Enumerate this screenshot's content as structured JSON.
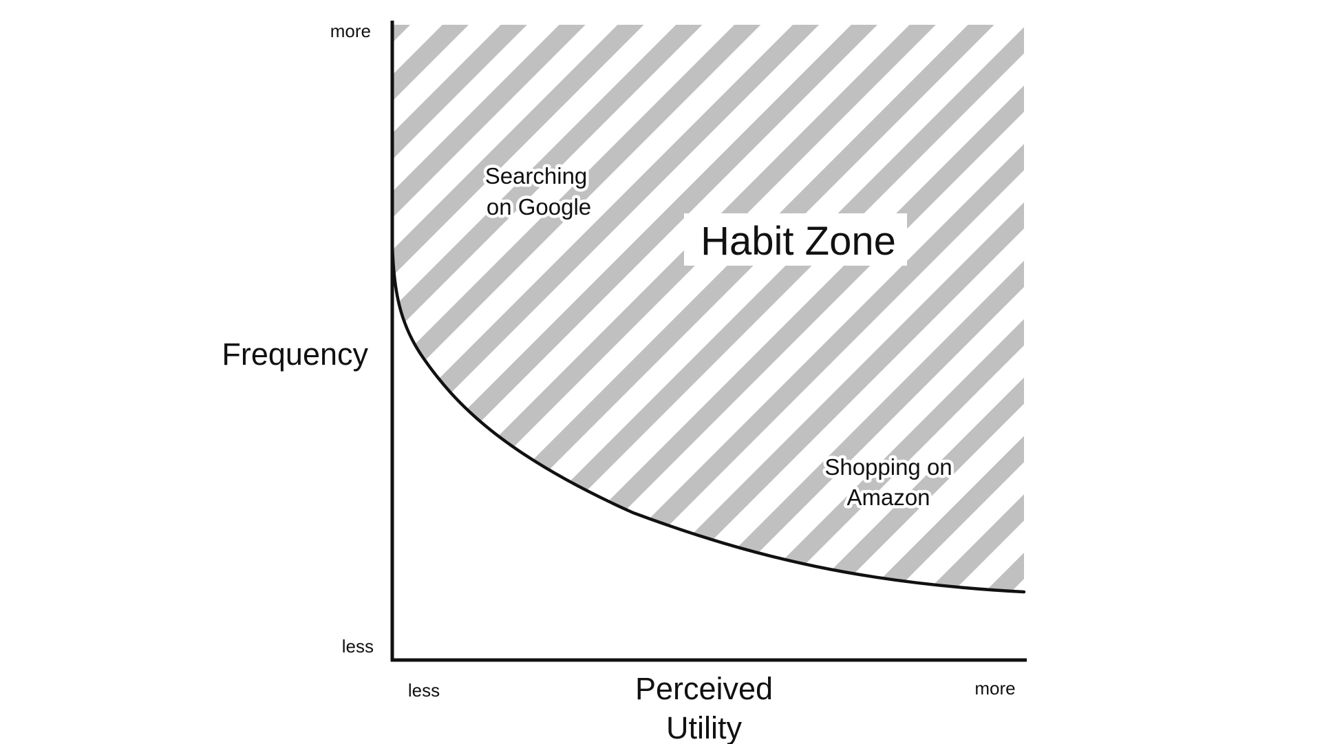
{
  "diagram": {
    "y_axis": {
      "label": "Frequency",
      "top_label": "more",
      "bottom_label": "less"
    },
    "x_axis": {
      "label_line1": "Perceived",
      "label_line2": "Utility",
      "left_label": "less",
      "right_label": "more"
    },
    "zone": {
      "title": "Habit Zone",
      "stripe_color": "#c0c0c0"
    },
    "examples": [
      {
        "line1": "Searching",
        "line2": "on Google"
      },
      {
        "line1": "Shopping on",
        "line2": "Amazon"
      }
    ],
    "colors": {
      "axis": "#111111",
      "curve": "#111111",
      "text": "#111111",
      "background": "#ffffff"
    }
  }
}
